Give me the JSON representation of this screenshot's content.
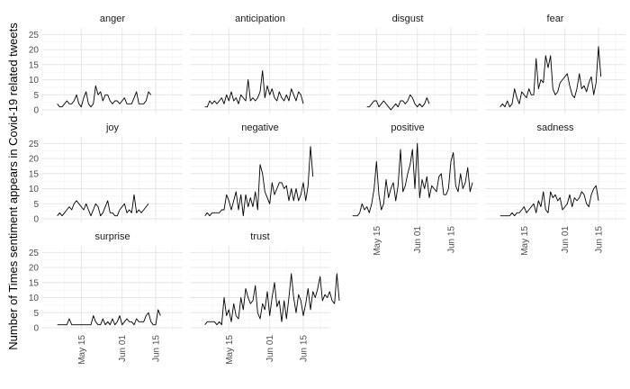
{
  "chart_data": {
    "type": "line",
    "faceted": true,
    "ylabel": "Number of Times sentiment appears in Covid-19 related tweets",
    "xlabel": "",
    "x_ticks": [
      {
        "label": "May 15",
        "day": 14
      },
      {
        "label": "Jun 01",
        "day": 31
      },
      {
        "label": "Jun 15",
        "day": 45
      }
    ],
    "ylim": [
      0,
      26
    ],
    "y_ticks": [
      0,
      5,
      10,
      15,
      20,
      25
    ],
    "x_range_days": [
      0,
      54
    ],
    "line_color": "#000000",
    "grid": true,
    "series": [
      {
        "name": "anger",
        "x_start_day": 4,
        "values": [
          2,
          1,
          1,
          2,
          3,
          2,
          2,
          3,
          5,
          2,
          1,
          4,
          6,
          2,
          1,
          2,
          8,
          5,
          6,
          3,
          5,
          5,
          3,
          2,
          3,
          3,
          2,
          3,
          4,
          2,
          2,
          2,
          4,
          6,
          2,
          2,
          2,
          3,
          6,
          5
        ]
      },
      {
        "name": "anticipation",
        "x_start_day": 4,
        "values": [
          1,
          1,
          3,
          2,
          3,
          2,
          3,
          4,
          2,
          5,
          3,
          6,
          3,
          4,
          2,
          5,
          4,
          3,
          10,
          3,
          4,
          3,
          4,
          6,
          13,
          4,
          8,
          5,
          7,
          4,
          3,
          6,
          4,
          3,
          5,
          3,
          7,
          5,
          3,
          6,
          5,
          2
        ]
      },
      {
        "name": "disgust",
        "x_start_day": 10,
        "values": [
          1,
          1,
          2,
          3,
          3,
          1,
          2,
          3,
          2,
          1,
          0,
          1,
          2,
          1,
          3,
          3,
          2,
          3,
          5,
          4,
          2,
          1,
          2,
          1,
          2,
          4,
          2
        ]
      },
      {
        "name": "fear",
        "x_start_day": 4,
        "values": [
          1,
          2,
          1,
          3,
          1,
          2,
          7,
          4,
          2,
          6,
          5,
          4,
          7,
          5,
          5,
          17,
          7,
          10,
          9,
          18,
          14,
          18,
          7,
          5,
          6,
          9,
          10,
          11,
          12,
          8,
          5,
          4,
          7,
          12,
          7,
          8,
          6,
          9,
          11,
          5,
          9,
          21,
          11
        ]
      },
      {
        "name": "joy",
        "x_start_day": 4,
        "values": [
          1,
          2,
          1,
          2,
          3,
          4,
          3,
          5,
          6,
          5,
          4,
          3,
          5,
          3,
          1,
          3,
          5,
          4,
          1,
          2,
          4,
          6,
          2,
          2,
          1,
          1,
          3,
          4,
          5,
          2,
          3,
          2,
          8,
          2,
          3,
          2,
          3,
          4,
          5
        ]
      },
      {
        "name": "negative",
        "x_start_day": 4,
        "values": [
          1,
          2,
          1,
          2,
          2,
          2,
          2,
          3,
          3,
          8,
          6,
          3,
          6,
          9,
          3,
          8,
          1,
          8,
          4,
          7,
          4,
          9,
          3,
          18,
          15,
          9,
          7,
          5,
          12,
          8,
          10,
          12,
          12,
          10,
          11,
          6,
          10,
          6,
          10,
          6,
          8,
          12,
          6,
          11,
          24,
          14
        ]
      },
      {
        "name": "positive",
        "x_start_day": 4,
        "values": [
          1,
          1,
          1,
          2,
          5,
          3,
          4,
          2,
          5,
          10,
          19,
          8,
          3,
          5,
          13,
          7,
          10,
          12,
          6,
          11,
          23,
          9,
          11,
          15,
          18,
          23,
          10,
          25,
          7,
          13,
          10,
          14,
          7,
          11,
          10,
          9,
          14,
          15,
          8,
          8,
          10,
          19,
          22,
          11,
          9,
          15,
          10,
          12,
          17,
          9,
          12
        ]
      },
      {
        "name": "sadness",
        "x_start_day": 4,
        "values": [
          1,
          1,
          1,
          1,
          1,
          2,
          1,
          2,
          2,
          3,
          4,
          2,
          3,
          4,
          5,
          2,
          6,
          4,
          9,
          3,
          2,
          9,
          7,
          8,
          6,
          7,
          3,
          4,
          5,
          8,
          4,
          7,
          6,
          7,
          9,
          8,
          5,
          4,
          8,
          10,
          11,
          6
        ]
      },
      {
        "name": "surprise",
        "x_start_day": 4,
        "values": [
          1,
          1,
          1,
          1,
          1,
          3,
          1,
          1,
          1,
          1,
          1,
          1,
          1,
          1,
          1,
          4,
          2,
          1,
          1,
          3,
          1,
          2,
          1,
          3,
          1,
          2,
          4,
          1,
          2,
          3,
          2,
          2,
          1,
          3,
          2,
          2,
          2,
          4,
          5,
          2,
          1,
          1,
          6,
          4
        ]
      },
      {
        "name": "trust",
        "x_start_day": 4,
        "values": [
          1,
          2,
          2,
          2,
          2,
          1,
          2,
          1,
          10,
          4,
          6,
          2,
          8,
          4,
          3,
          10,
          6,
          13,
          10,
          8,
          9,
          14,
          5,
          3,
          8,
          6,
          12,
          4,
          10,
          15,
          7,
          9,
          2,
          9,
          3,
          10,
          18,
          10,
          5,
          11,
          9,
          4,
          8,
          13,
          6,
          12,
          10,
          13,
          17,
          9,
          11,
          10,
          12,
          9,
          8,
          18,
          9
        ]
      }
    ]
  }
}
